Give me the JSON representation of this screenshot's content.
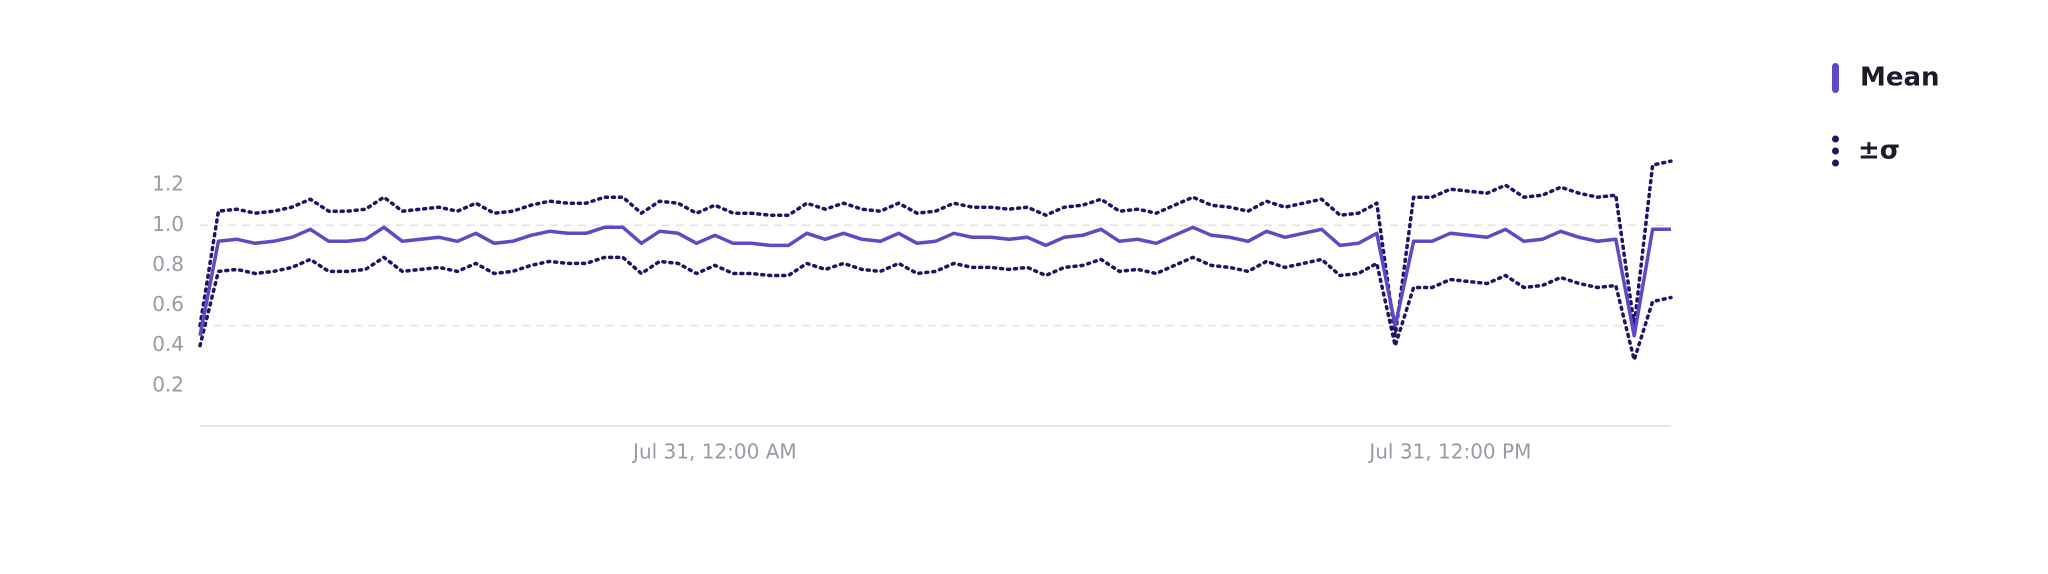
{
  "chart_data": {
    "type": "line",
    "x": [
      -8.4,
      -8.1,
      -7.8,
      -7.5,
      -7.2,
      -6.9,
      -6.6,
      -6.3,
      -6,
      -5.7,
      -5.4,
      -5.1,
      -4.8,
      -4.5,
      -4.2,
      -3.9,
      -3.6,
      -3.3,
      -3,
      -2.7,
      -2.4,
      -2.1,
      -1.8,
      -1.5,
      -1.2,
      -0.9,
      -0.6,
      -0.3,
      0,
      0.3,
      0.6,
      0.9,
      1.2,
      1.5,
      1.8,
      2.1,
      2.4,
      2.7,
      3,
      3.3,
      3.6,
      3.9,
      4.2,
      4.5,
      4.8,
      5.1,
      5.4,
      5.7,
      6,
      6.3,
      6.6,
      6.9,
      7.2,
      7.5,
      7.8,
      8.1,
      8.4,
      8.7,
      9,
      9.3,
      9.6,
      9.9,
      10.2,
      10.5,
      10.8,
      11.1,
      11.4,
      11.7,
      12,
      12.3,
      12.6,
      12.9,
      13.2,
      13.5,
      13.8,
      14.1,
      14.4,
      14.7,
      15,
      15.3,
      15.6
    ],
    "series": [
      {
        "name": "Mean",
        "color": "#5b4bc4",
        "values": [
          0.45,
          0.92,
          0.93,
          0.91,
          0.92,
          0.94,
          0.98,
          0.92,
          0.92,
          0.93,
          0.99,
          0.92,
          0.93,
          0.94,
          0.92,
          0.96,
          0.91,
          0.92,
          0.95,
          0.97,
          0.96,
          0.96,
          0.99,
          0.99,
          0.91,
          0.97,
          0.96,
          0.91,
          0.95,
          0.91,
          0.91,
          0.9,
          0.9,
          0.96,
          0.93,
          0.96,
          0.93,
          0.92,
          0.96,
          0.91,
          0.92,
          0.96,
          0.94,
          0.94,
          0.93,
          0.94,
          0.9,
          0.94,
          0.95,
          0.98,
          0.92,
          0.93,
          0.91,
          0.95,
          0.99,
          0.95,
          0.94,
          0.92,
          0.97,
          0.94,
          0.96,
          0.98,
          0.9,
          0.91,
          0.96,
          0.5,
          0.92,
          0.92,
          0.96,
          0.95,
          0.94,
          0.98,
          0.92,
          0.93,
          0.97,
          0.94,
          0.92,
          0.93,
          0.45,
          0.98,
          0.98
        ]
      }
    ],
    "band": {
      "name": "±σ",
      "color": "#1e1463",
      "upper": [
        0.5,
        1.07,
        1.08,
        1.06,
        1.07,
        1.09,
        1.13,
        1.07,
        1.07,
        1.08,
        1.14,
        1.07,
        1.08,
        1.09,
        1.07,
        1.11,
        1.06,
        1.07,
        1.1,
        1.12,
        1.11,
        1.11,
        1.14,
        1.14,
        1.06,
        1.12,
        1.11,
        1.06,
        1.1,
        1.06,
        1.06,
        1.05,
        1.05,
        1.11,
        1.08,
        1.11,
        1.08,
        1.07,
        1.11,
        1.06,
        1.07,
        1.11,
        1.09,
        1.09,
        1.08,
        1.09,
        1.05,
        1.09,
        1.1,
        1.13,
        1.07,
        1.08,
        1.06,
        1.1,
        1.14,
        1.1,
        1.09,
        1.07,
        1.12,
        1.09,
        1.11,
        1.13,
        1.05,
        1.06,
        1.11,
        0.45,
        1.14,
        1.14,
        1.18,
        1.17,
        1.16,
        1.2,
        1.14,
        1.15,
        1.19,
        1.16,
        1.14,
        1.15,
        0.5,
        1.3,
        1.32
      ],
      "lower": [
        0.4,
        0.77,
        0.78,
        0.76,
        0.77,
        0.79,
        0.83,
        0.77,
        0.77,
        0.78,
        0.84,
        0.77,
        0.78,
        0.79,
        0.77,
        0.81,
        0.76,
        0.77,
        0.8,
        0.82,
        0.81,
        0.81,
        0.84,
        0.84,
        0.76,
        0.82,
        0.81,
        0.76,
        0.8,
        0.76,
        0.76,
        0.75,
        0.75,
        0.81,
        0.78,
        0.81,
        0.78,
        0.77,
        0.81,
        0.76,
        0.77,
        0.81,
        0.79,
        0.79,
        0.78,
        0.79,
        0.75,
        0.79,
        0.8,
        0.83,
        0.77,
        0.78,
        0.76,
        0.8,
        0.84,
        0.8,
        0.79,
        0.77,
        0.82,
        0.79,
        0.81,
        0.83,
        0.75,
        0.76,
        0.81,
        0.4,
        0.69,
        0.69,
        0.73,
        0.72,
        0.71,
        0.75,
        0.69,
        0.7,
        0.74,
        0.71,
        0.69,
        0.7,
        0.33,
        0.62,
        0.64
      ]
    },
    "xlim": [
      -8.4,
      15.6
    ],
    "xticks": [
      {
        "value": 0,
        "label": "Jul 31, 12:00 AM"
      },
      {
        "value": 12,
        "label": "Jul 31, 12:00 PM"
      }
    ],
    "ylim": [
      0,
      1.4
    ],
    "yticks": [
      0.2,
      0.4,
      0.6,
      0.8,
      {
        "value": 1,
        "label": "1.0"
      },
      1.2
    ],
    "grid_values": [
      0.5,
      1
    ],
    "legend": "right"
  }
}
